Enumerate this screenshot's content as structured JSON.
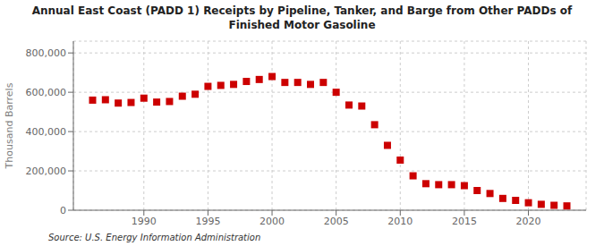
{
  "chart_data": {
    "type": "scatter",
    "title": "Annual East Coast (PADD 1) Receipts by Pipeline, Tanker, and Barge from Other PADDs of\nFinished Motor Gasoline",
    "y_label": "Thousand Barrels",
    "annotations": [
      "Source: U.S. Energy Information Administration"
    ],
    "x": [
      1986,
      1987,
      1988,
      1989,
      1990,
      1991,
      1992,
      1993,
      1994,
      1995,
      1996,
      1997,
      1998,
      1999,
      2000,
      2001,
      2002,
      2003,
      2004,
      2005,
      2006,
      2007,
      2008,
      2009,
      2010,
      2011,
      2012,
      2013,
      2014,
      2015,
      2016,
      2017,
      2018,
      2019,
      2020,
      2021,
      2022,
      2023
    ],
    "values": [
      560000,
      562000,
      545000,
      548000,
      570000,
      550000,
      553000,
      580000,
      590000,
      630000,
      635000,
      640000,
      655000,
      665000,
      680000,
      650000,
      650000,
      640000,
      650000,
      600000,
      535000,
      530000,
      435000,
      330000,
      255000,
      175000,
      135000,
      130000,
      130000,
      125000,
      100000,
      85000,
      60000,
      50000,
      38000,
      30000,
      25000,
      22000
    ],
    "color": "#cc0000",
    "marker": "square",
    "xlim": [
      1984.5,
      2024.5
    ],
    "ylim": [
      0,
      860000
    ],
    "xticks": [
      1990,
      1995,
      2000,
      2005,
      2010,
      2015,
      2020
    ],
    "yticks": [
      0,
      {
        "value": 200000,
        "label": "200,000"
      },
      {
        "value": 400000,
        "label": "400,000"
      },
      {
        "value": 600000,
        "label": "600,000"
      },
      {
        "value": 800000,
        "label": "800,000"
      }
    ],
    "grid": true
  }
}
